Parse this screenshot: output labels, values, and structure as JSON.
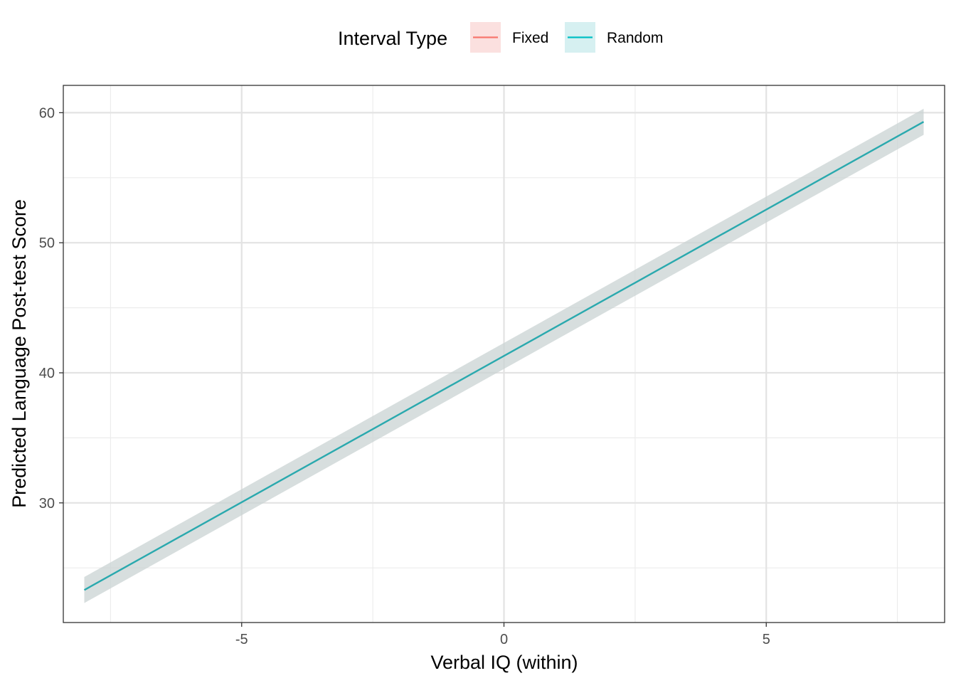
{
  "chart_data": {
    "type": "line",
    "xlabel": "Verbal IQ (within)",
    "ylabel": "Predicted Language Post-test Score",
    "xlim": [
      -8.4,
      8.4
    ],
    "ylim": [
      20.8,
      62.1
    ],
    "x_ticks": [
      -5,
      0,
      5
    ],
    "x_tick_labels": [
      "-5",
      "0",
      "5"
    ],
    "x_minor_ticks": [
      -7.5,
      -2.5,
      2.5,
      7.5
    ],
    "y_ticks": [
      30,
      40,
      50,
      60
    ],
    "y_tick_labels": [
      "30",
      "40",
      "50",
      "60"
    ],
    "y_minor_ticks": [
      25,
      35,
      45,
      55
    ],
    "grid": true,
    "legend": {
      "title": "Interval Type",
      "position": "top",
      "entries": [
        {
          "label": "Fixed",
          "color": "#F8766D",
          "fill": "#fbe0df"
        },
        {
          "label": "Random",
          "color": "#00BFC4",
          "fill": "#d6f0f1"
        }
      ]
    },
    "series": [
      {
        "name": "Random",
        "color": "#2aa9ae",
        "ribbon_color": "#c9d3d3",
        "x": [
          -8,
          8
        ],
        "y": [
          23.3,
          59.3
        ],
        "lower": [
          22.3,
          58.3
        ],
        "upper": [
          24.3,
          60.3
        ]
      }
    ]
  }
}
